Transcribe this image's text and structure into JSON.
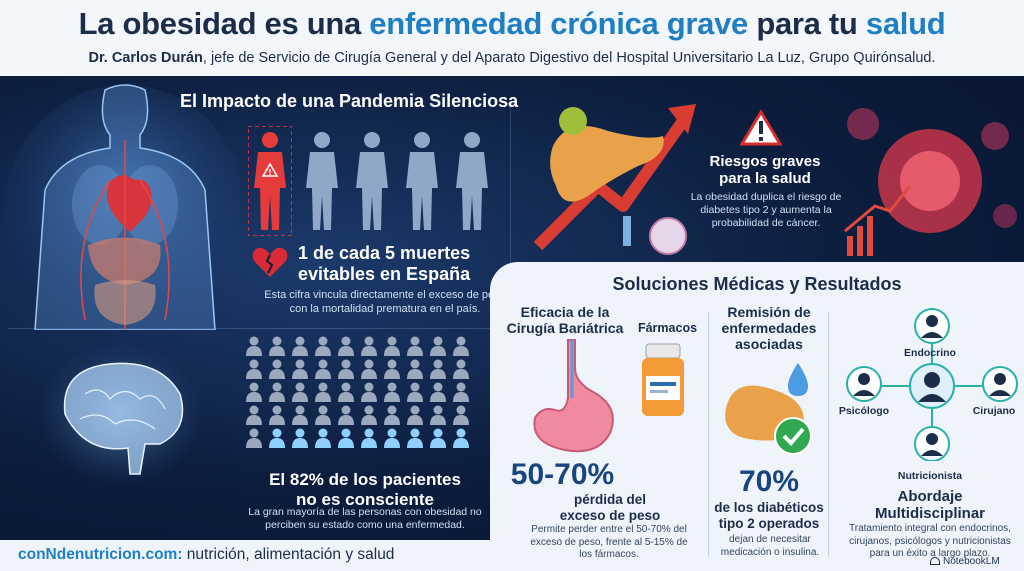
{
  "header": {
    "title_part1": "La obesidad es una ",
    "title_part2": "enfermedad crónica grave",
    "title_part3": " para tu ",
    "title_part4": "salud",
    "author": "Dr. Carlos Durán",
    "subtitle_rest": ", jefe de Servicio de Cirugía General y del Aparato Digestivo del Hospital Universitario La Luz, Grupo Quirónsalud."
  },
  "impact": {
    "title": "El Impacto de una Pandemia Silenciosa",
    "deaths_line1": "1 de cada 5 muertes",
    "deaths_line2": "evitables en España",
    "deaths_text": "Esta cifra vincula directamente el exceso de peso con la mortalidad prematura en el país."
  },
  "risks": {
    "title_line1": "Riesgos graves",
    "title_line2": "para la salud",
    "text": "La obesidad duplica el riesgo de diabetes tipo 2 y aumenta la probabilidad de cáncer."
  },
  "unaware": {
    "line1": "El 82% de los pacientes",
    "line2": "no es consciente",
    "text": "La gran mayoría de las personas con obesidad no perciben su estado como una enfermedad.",
    "grid_total": 50,
    "grid_aware": 9
  },
  "solutions": {
    "title": "Soluciones Médicas y Resultados",
    "surgery": {
      "title_line1": "Eficacia de la",
      "title_line2": "Cirugía Bariátrica",
      "drugs_label": "Fármacos",
      "big": "50-70%",
      "sub_line1": "pérdida del",
      "sub_line2": "exceso de peso",
      "text": "Permite perder entre el 50-70% del exceso de peso, frente al 5-15% de los fármacos."
    },
    "remission": {
      "title_line1": "Remisión de",
      "title_line2": "enfermedades",
      "title_line3": "asociadas",
      "big": "70%",
      "sub_line1": "de los diabéticos",
      "sub_line2": "tipo 2 operados",
      "text": "dejan de necesitar medicación o insulina."
    },
    "team": {
      "node_top": "Endocrino",
      "node_left": "Psicólogo",
      "node_right": "Cirujano",
      "node_bottom": "Nutricionista",
      "title_line1": "Abordaje",
      "title_line2": "Multidisciplinar",
      "text": "Tratamiento integral con endocrinos, cirujanos, psicólogos y nutricionistas para un éxito a largo plazo."
    }
  },
  "footer": {
    "site": "conNdenutricion.com:",
    "tagline": " nutrición, alimentación y salud",
    "brand": "NotebookLM"
  },
  "colors": {
    "accent_blue": "#1f7fc4",
    "navy": "#1c2d4a",
    "alert_red": "#e03a3a",
    "teal": "#2ab0a8"
  }
}
